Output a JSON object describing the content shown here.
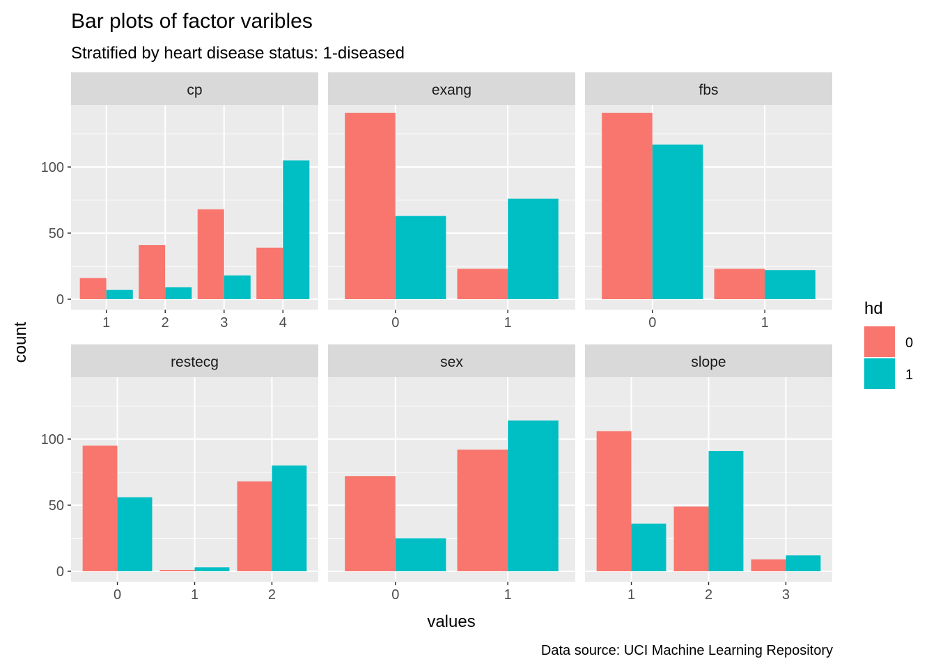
{
  "chart_data": {
    "type": "bar",
    "title": "Bar plots of factor varibles",
    "subtitle": "Stratified by heart disease status: 1-diseased",
    "xlabel": "values",
    "ylabel": "count",
    "caption": "Data source: UCI Machine Learning Repository",
    "ylim": [
      0,
      140
    ],
    "y_ticks": [
      0,
      50,
      100
    ],
    "grid": true,
    "legend": {
      "title": "hd",
      "position": "right",
      "entries": [
        {
          "label": "0",
          "color": "#F8766D"
        },
        {
          "label": "1",
          "color": "#00BFC4"
        }
      ]
    },
    "panels": [
      {
        "facet": "cp",
        "categories": [
          "1",
          "2",
          "3",
          "4"
        ],
        "series": [
          {
            "name": "0",
            "values": [
              16,
              41,
              68,
              39
            ]
          },
          {
            "name": "1",
            "values": [
              7,
              9,
              18,
              105
            ]
          }
        ]
      },
      {
        "facet": "exang",
        "categories": [
          "0",
          "1"
        ],
        "series": [
          {
            "name": "0",
            "values": [
              141,
              23
            ]
          },
          {
            "name": "1",
            "values": [
              63,
              76
            ]
          }
        ]
      },
      {
        "facet": "fbs",
        "categories": [
          "0",
          "1"
        ],
        "series": [
          {
            "name": "0",
            "values": [
              141,
              23
            ]
          },
          {
            "name": "1",
            "values": [
              117,
              22
            ]
          }
        ]
      },
      {
        "facet": "restecg",
        "categories": [
          "0",
          "1",
          "2"
        ],
        "series": [
          {
            "name": "0",
            "values": [
              95,
              1,
              68
            ]
          },
          {
            "name": "1",
            "values": [
              56,
              3,
              80
            ]
          }
        ]
      },
      {
        "facet": "sex",
        "categories": [
          "0",
          "1"
        ],
        "series": [
          {
            "name": "0",
            "values": [
              72,
              92
            ]
          },
          {
            "name": "1",
            "values": [
              25,
              114
            ]
          }
        ]
      },
      {
        "facet": "slope",
        "categories": [
          "1",
          "2",
          "3"
        ],
        "series": [
          {
            "name": "0",
            "values": [
              106,
              49,
              9
            ]
          },
          {
            "name": "1",
            "values": [
              36,
              91,
              12
            ]
          }
        ]
      }
    ]
  }
}
